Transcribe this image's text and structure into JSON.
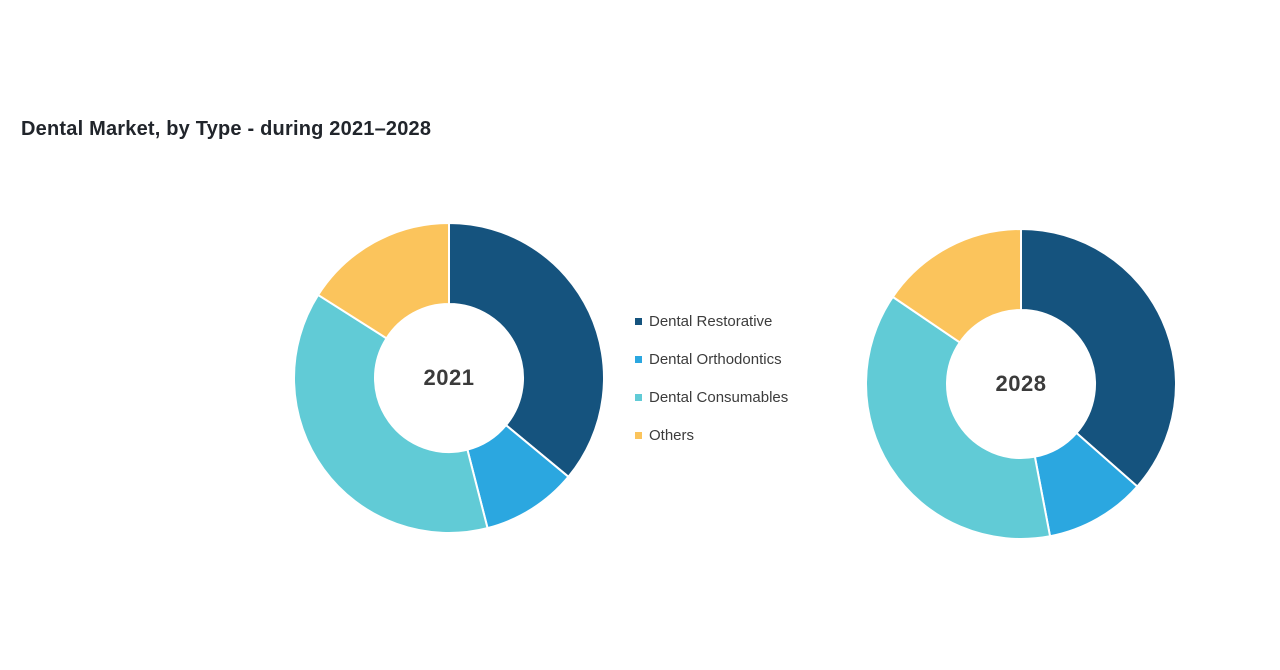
{
  "chart_data": {
    "type": "pie",
    "subtype": "donut",
    "title": "Dental Market, by Type - during 2021–2028",
    "title_color": "#21252b",
    "legend_position": "center-between-donuts",
    "direction": "clockwise",
    "start_angle_deg": 0,
    "inner_radius_ratio": 0.477,
    "slice_gap_color": "#ffffff",
    "categories": [
      "Dental Restorative",
      "Dental Orthodontics",
      "Dental Consumables",
      "Others"
    ],
    "colors": [
      "#15537E",
      "#2BA7E0",
      "#61CBD6",
      "#FBC45C"
    ],
    "series": [
      {
        "name": "2021",
        "center_label": "2021",
        "values_pct": [
          36,
          10,
          38,
          16
        ]
      },
      {
        "name": "2028",
        "center_label": "2028",
        "values_pct": [
          36.5,
          10.5,
          37.5,
          15.5
        ]
      }
    ]
  }
}
